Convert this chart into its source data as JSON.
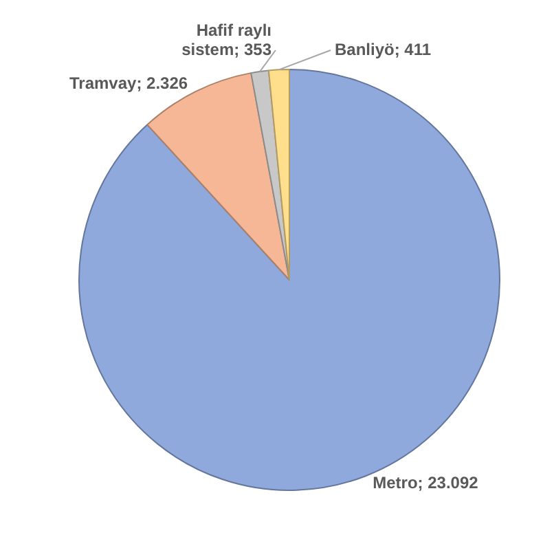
{
  "chart_data": {
    "type": "pie",
    "categories": [
      "Metro",
      "Tramvay",
      "Hafif raylı sistem",
      "Banliyö"
    ],
    "values": [
      23092,
      2326,
      353,
      411
    ],
    "value_labels": [
      "23.092",
      "2.326",
      "353",
      "411"
    ],
    "colors": [
      "#8fa9dd",
      "#f5b796",
      "#c8c8c8",
      "#ffde8c"
    ],
    "legend": false
  }
}
